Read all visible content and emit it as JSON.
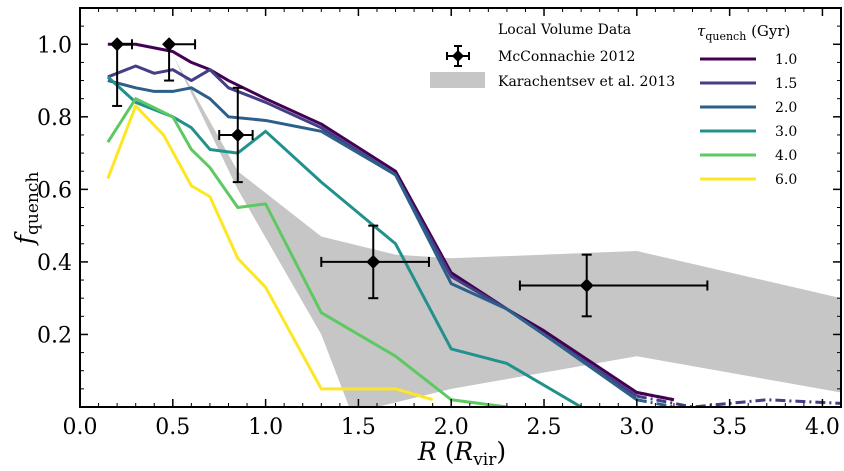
{
  "chart_data": {
    "type": "line",
    "xlabel": "R (R_vir)",
    "xlabel_main": "R",
    "xlabel_unit": "R",
    "xlabel_unit_sub": "vir",
    "ylabel": "f_quench",
    "ylabel_main": "f",
    "ylabel_sub": "quench",
    "xlim": [
      0.0,
      4.1
    ],
    "ylim": [
      0.0,
      1.1
    ],
    "xticks": [
      0.0,
      0.5,
      1.0,
      1.5,
      2.0,
      2.5,
      3.0,
      3.5,
      4.0
    ],
    "xtick_labels": [
      "0.0",
      "0.5",
      "1.0",
      "1.5",
      "2.0",
      "2.5",
      "3.0",
      "3.5",
      "4.0"
    ],
    "yticks": [
      0.2,
      0.4,
      0.6,
      0.8,
      1.0
    ],
    "ytick_labels": [
      "0.2",
      "0.4",
      "0.6",
      "0.8",
      "1.0"
    ],
    "grid": false,
    "legend_placement": "top-right",
    "legend_title_main": "τ",
    "legend_title_sub": "quench",
    "legend_title_unit": "(Gyr)",
    "data_legend_title": "Local Volume Data",
    "series": [
      {
        "name": "1.0",
        "color": "#440154",
        "x": [
          0.15,
          0.3,
          0.4,
          0.5,
          0.6,
          0.7,
          0.8,
          1.0,
          1.3,
          1.7,
          2.0,
          2.3,
          2.5,
          3.0,
          3.2
        ],
        "y": [
          1.0,
          1.0,
          0.99,
          0.98,
          0.95,
          0.93,
          0.9,
          0.85,
          0.78,
          0.65,
          0.37,
          0.27,
          0.21,
          0.04,
          0.02
        ],
        "dash_x": [
          3.0,
          3.2
        ],
        "dash_y": [
          0.04,
          0.02
        ]
      },
      {
        "name": "1.5",
        "color": "#433e85",
        "x": [
          0.15,
          0.3,
          0.4,
          0.5,
          0.6,
          0.7,
          0.8,
          1.0,
          1.3,
          1.7,
          2.0,
          2.3,
          2.5,
          3.0
        ],
        "y": [
          0.91,
          0.94,
          0.92,
          0.93,
          0.9,
          0.93,
          0.88,
          0.84,
          0.77,
          0.64,
          0.36,
          0.27,
          0.2,
          0.03
        ],
        "dash_x": [
          3.0,
          3.3,
          3.7,
          4.1
        ],
        "dash_y": [
          0.03,
          0.0,
          0.02,
          0.01
        ]
      },
      {
        "name": "2.0",
        "color": "#2c5f8a",
        "x": [
          0.15,
          0.3,
          0.4,
          0.5,
          0.6,
          0.7,
          0.8,
          1.0,
          1.3,
          1.7,
          2.0,
          2.3,
          2.5,
          3.0
        ],
        "y": [
          0.9,
          0.88,
          0.87,
          0.87,
          0.88,
          0.85,
          0.8,
          0.79,
          0.76,
          0.64,
          0.34,
          0.27,
          0.2,
          0.02
        ],
        "dash_x": [
          3.0,
          3.2
        ],
        "dash_y": [
          0.02,
          0.0
        ]
      },
      {
        "name": "3.0",
        "color": "#21918c",
        "x": [
          0.15,
          0.3,
          0.5,
          0.6,
          0.7,
          0.85,
          1.0,
          1.3,
          1.7,
          2.0,
          2.3,
          2.7
        ],
        "y": [
          0.91,
          0.84,
          0.8,
          0.77,
          0.71,
          0.7,
          0.76,
          0.62,
          0.45,
          0.16,
          0.12,
          0.0
        ],
        "dash_x": [],
        "dash_y": []
      },
      {
        "name": "4.0",
        "color": "#5ec962",
        "x": [
          0.15,
          0.3,
          0.5,
          0.6,
          0.7,
          0.85,
          1.0,
          1.3,
          1.7,
          2.0,
          2.3
        ],
        "y": [
          0.73,
          0.85,
          0.8,
          0.71,
          0.66,
          0.55,
          0.56,
          0.26,
          0.14,
          0.02,
          0.0
        ],
        "dash_x": [],
        "dash_y": []
      },
      {
        "name": "6.0",
        "color": "#fde725",
        "x": [
          0.15,
          0.3,
          0.45,
          0.6,
          0.7,
          0.85,
          1.0,
          1.3,
          1.7,
          1.9
        ],
        "y": [
          0.63,
          0.83,
          0.75,
          0.61,
          0.58,
          0.41,
          0.33,
          0.05,
          0.05,
          0.02
        ],
        "dash_x": [],
        "dash_y": []
      }
    ],
    "band": {
      "name": "Karachentsev et al. 2013",
      "color": "#c6c6c6",
      "upper_x": [
        0.5,
        0.85,
        1.3,
        1.7,
        2.0,
        3.0,
        4.1
      ],
      "upper_y": [
        0.97,
        0.65,
        0.47,
        0.42,
        0.41,
        0.43,
        0.3
      ],
      "lower_x": [
        0.5,
        0.85,
        1.3,
        1.45,
        1.6,
        2.0,
        3.0,
        4.1
      ],
      "lower_y": [
        0.97,
        0.6,
        0.2,
        0.0,
        0.0,
        0.05,
        0.14,
        0.04
      ]
    },
    "points": {
      "name": "McConnachie 2012",
      "color": "#000000",
      "x": [
        0.2,
        0.48,
        0.85,
        1.58,
        2.73
      ],
      "y": [
        1.0,
        1.0,
        0.75,
        0.4,
        0.335
      ],
      "xerr_low": [
        0.2,
        0.48,
        0.75,
        1.3,
        2.37
      ],
      "xerr_high": [
        0.28,
        0.62,
        0.93,
        1.88,
        3.38
      ],
      "yerr_low": [
        0.83,
        0.9,
        0.62,
        0.3,
        0.25
      ],
      "yerr_high": [
        1.0,
        1.0,
        0.88,
        0.5,
        0.42
      ]
    }
  }
}
